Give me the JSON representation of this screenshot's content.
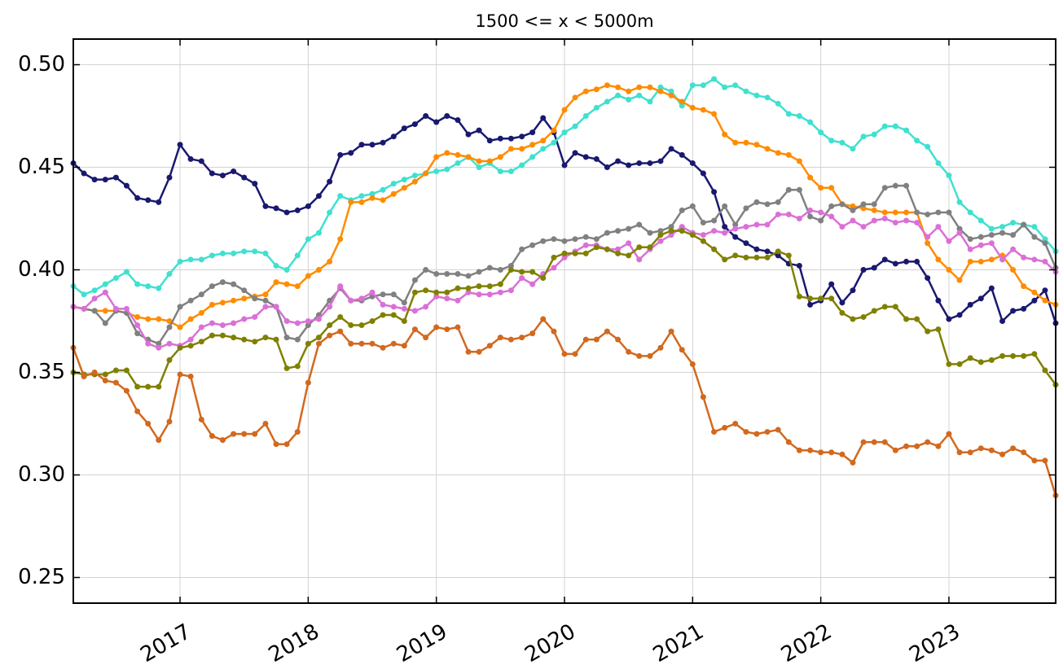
{
  "chart_data": {
    "type": "line",
    "title": "1500 <= x < 5000m",
    "x": [
      2016.167,
      2016.25,
      2016.333,
      2016.417,
      2016.5,
      2016.583,
      2016.667,
      2016.75,
      2016.833,
      2016.917,
      2017.0,
      2017.083,
      2017.167,
      2017.25,
      2017.333,
      2017.417,
      2017.5,
      2017.583,
      2017.667,
      2017.75,
      2017.833,
      2017.917,
      2018.0,
      2018.083,
      2018.167,
      2018.25,
      2018.333,
      2018.417,
      2018.5,
      2018.583,
      2018.667,
      2018.75,
      2018.833,
      2018.917,
      2019.0,
      2019.083,
      2019.167,
      2019.25,
      2019.333,
      2019.417,
      2019.5,
      2019.583,
      2019.667,
      2019.75,
      2019.833,
      2019.917,
      2020.0,
      2020.083,
      2020.167,
      2020.25,
      2020.333,
      2020.417,
      2020.5,
      2020.583,
      2020.667,
      2020.75,
      2020.833,
      2020.917,
      2021.0,
      2021.083,
      2021.167,
      2021.25,
      2021.333,
      2021.417,
      2021.5,
      2021.583,
      2021.667,
      2021.75,
      2021.833,
      2021.917,
      2022.0,
      2022.083,
      2022.167,
      2022.25,
      2022.333,
      2022.417,
      2022.5,
      2022.583,
      2022.667,
      2022.75,
      2022.833,
      2022.917,
      2023.0,
      2023.083,
      2023.167,
      2023.25,
      2023.333,
      2023.417,
      2023.5,
      2023.583,
      2023.667,
      2023.75,
      2023.833
    ],
    "series": [
      {
        "color": "#191970",
        "values": [
          0.452,
          0.447,
          0.444,
          0.444,
          0.445,
          0.441,
          0.435,
          0.434,
          0.433,
          0.445,
          0.461,
          0.454,
          0.453,
          0.447,
          0.446,
          0.448,
          0.445,
          0.442,
          0.431,
          0.43,
          0.428,
          0.429,
          0.431,
          0.436,
          0.443,
          0.456,
          0.457,
          0.461,
          0.461,
          0.462,
          0.465,
          0.469,
          0.471,
          0.475,
          0.472,
          0.475,
          0.473,
          0.466,
          0.468,
          0.463,
          0.464,
          0.464,
          0.465,
          0.467,
          0.474,
          0.467,
          0.451,
          0.457,
          0.455,
          0.454,
          0.45,
          0.453,
          0.451,
          0.452,
          0.452,
          0.453,
          0.459,
          0.456,
          0.452,
          0.447,
          0.438,
          0.421,
          0.416,
          0.413,
          0.41,
          0.409,
          0.407,
          0.403,
          0.402,
          0.383,
          0.385,
          0.393,
          0.384,
          0.39,
          0.4,
          0.401,
          0.405,
          0.403,
          0.404,
          0.404,
          0.396,
          0.385,
          0.376,
          0.378,
          0.383,
          0.386,
          0.391,
          0.375,
          0.38,
          0.381,
          0.385,
          0.39,
          0.374
        ]
      },
      {
        "color": "#40e0d0",
        "values": [
          0.392,
          0.388,
          0.39,
          0.393,
          0.396,
          0.399,
          0.393,
          0.392,
          0.391,
          0.398,
          0.404,
          0.405,
          0.405,
          0.407,
          0.408,
          0.408,
          0.409,
          0.409,
          0.408,
          0.402,
          0.4,
          0.407,
          0.415,
          0.418,
          0.428,
          0.436,
          0.434,
          0.436,
          0.437,
          0.439,
          0.442,
          0.444,
          0.446,
          0.447,
          0.448,
          0.449,
          0.452,
          0.455,
          0.45,
          0.452,
          0.448,
          0.448,
          0.451,
          0.455,
          0.459,
          0.462,
          0.467,
          0.47,
          0.475,
          0.479,
          0.482,
          0.485,
          0.483,
          0.485,
          0.482,
          0.489,
          0.487,
          0.48,
          0.49,
          0.49,
          0.493,
          0.489,
          0.49,
          0.487,
          0.485,
          0.484,
          0.481,
          0.476,
          0.475,
          0.472,
          0.467,
          0.463,
          0.462,
          0.459,
          0.465,
          0.466,
          0.47,
          0.47,
          0.468,
          0.463,
          0.46,
          0.452,
          0.446,
          0.433,
          0.428,
          0.424,
          0.42,
          0.421,
          0.423,
          0.422,
          0.421,
          0.415,
          0.409
        ]
      },
      {
        "color": "#ff8c00",
        "values": [
          0.382,
          0.381,
          0.38,
          0.38,
          0.38,
          0.379,
          0.377,
          0.376,
          0.376,
          0.375,
          0.372,
          0.376,
          0.379,
          0.383,
          0.384,
          0.385,
          0.386,
          0.387,
          0.388,
          0.394,
          0.393,
          0.392,
          0.397,
          0.4,
          0.404,
          0.415,
          0.433,
          0.433,
          0.435,
          0.434,
          0.437,
          0.44,
          0.443,
          0.447,
          0.455,
          0.457,
          0.456,
          0.455,
          0.453,
          0.453,
          0.455,
          0.459,
          0.459,
          0.461,
          0.463,
          0.468,
          0.478,
          0.484,
          0.487,
          0.488,
          0.49,
          0.489,
          0.487,
          0.489,
          0.489,
          0.487,
          0.485,
          0.482,
          0.479,
          0.478,
          0.476,
          0.466,
          0.462,
          0.462,
          0.461,
          0.459,
          0.457,
          0.456,
          0.453,
          0.445,
          0.44,
          0.44,
          0.432,
          0.431,
          0.43,
          0.429,
          0.428,
          0.428,
          0.428,
          0.428,
          0.413,
          0.405,
          0.4,
          0.395,
          0.404,
          0.404,
          0.405,
          0.407,
          0.4,
          0.392,
          0.389,
          0.385,
          0.383
        ]
      },
      {
        "color": "#808080",
        "values": [
          0.382,
          0.381,
          0.38,
          0.374,
          0.38,
          0.379,
          0.369,
          0.366,
          0.364,
          0.372,
          0.382,
          0.385,
          0.388,
          0.392,
          0.394,
          0.393,
          0.39,
          0.386,
          0.385,
          0.382,
          0.367,
          0.366,
          0.373,
          0.378,
          0.385,
          0.391,
          0.385,
          0.385,
          0.387,
          0.388,
          0.388,
          0.384,
          0.395,
          0.4,
          0.398,
          0.398,
          0.398,
          0.397,
          0.399,
          0.401,
          0.4,
          0.402,
          0.41,
          0.412,
          0.414,
          0.415,
          0.414,
          0.415,
          0.416,
          0.415,
          0.418,
          0.419,
          0.42,
          0.422,
          0.418,
          0.419,
          0.421,
          0.429,
          0.431,
          0.423,
          0.424,
          0.431,
          0.422,
          0.43,
          0.433,
          0.432,
          0.433,
          0.439,
          0.439,
          0.426,
          0.424,
          0.431,
          0.432,
          0.429,
          0.432,
          0.432,
          0.44,
          0.441,
          0.441,
          0.428,
          0.427,
          0.428,
          0.428,
          0.42,
          0.415,
          0.416,
          0.417,
          0.418,
          0.417,
          0.422,
          0.416,
          0.413,
          0.401
        ]
      },
      {
        "color": "#da70d6",
        "values": [
          0.382,
          0.381,
          0.386,
          0.389,
          0.381,
          0.381,
          0.373,
          0.364,
          0.362,
          0.364,
          0.363,
          0.366,
          0.372,
          0.374,
          0.373,
          0.374,
          0.376,
          0.377,
          0.382,
          0.382,
          0.375,
          0.374,
          0.375,
          0.376,
          0.382,
          0.392,
          0.385,
          0.386,
          0.389,
          0.383,
          0.382,
          0.381,
          0.38,
          0.382,
          0.387,
          0.386,
          0.385,
          0.389,
          0.388,
          0.388,
          0.389,
          0.39,
          0.396,
          0.393,
          0.398,
          0.401,
          0.406,
          0.409,
          0.412,
          0.412,
          0.41,
          0.41,
          0.413,
          0.405,
          0.41,
          0.414,
          0.417,
          0.421,
          0.418,
          0.417,
          0.419,
          0.418,
          0.42,
          0.421,
          0.422,
          0.422,
          0.427,
          0.427,
          0.425,
          0.429,
          0.428,
          0.426,
          0.421,
          0.424,
          0.421,
          0.424,
          0.425,
          0.423,
          0.424,
          0.423,
          0.416,
          0.421,
          0.414,
          0.418,
          0.41,
          0.412,
          0.413,
          0.405,
          0.41,
          0.406,
          0.405,
          0.404,
          0.399
        ]
      },
      {
        "color": "#808000",
        "values": [
          0.35,
          0.349,
          0.349,
          0.349,
          0.351,
          0.351,
          0.343,
          0.343,
          0.343,
          0.356,
          0.362,
          0.363,
          0.365,
          0.368,
          0.368,
          0.367,
          0.366,
          0.365,
          0.367,
          0.366,
          0.352,
          0.353,
          0.364,
          0.367,
          0.373,
          0.377,
          0.373,
          0.373,
          0.375,
          0.378,
          0.378,
          0.375,
          0.389,
          0.39,
          0.389,
          0.389,
          0.391,
          0.391,
          0.392,
          0.392,
          0.393,
          0.4,
          0.399,
          0.399,
          0.396,
          0.406,
          0.408,
          0.408,
          0.408,
          0.411,
          0.41,
          0.408,
          0.407,
          0.411,
          0.411,
          0.417,
          0.419,
          0.419,
          0.417,
          0.414,
          0.41,
          0.405,
          0.407,
          0.406,
          0.406,
          0.406,
          0.409,
          0.407,
          0.387,
          0.386,
          0.386,
          0.386,
          0.379,
          0.376,
          0.377,
          0.38,
          0.382,
          0.382,
          0.376,
          0.376,
          0.37,
          0.371,
          0.354,
          0.354,
          0.357,
          0.355,
          0.356,
          0.358,
          0.358,
          0.358,
          0.359,
          0.351,
          0.344
        ]
      },
      {
        "color": "#d2691e",
        "values": [
          0.362,
          0.348,
          0.35,
          0.346,
          0.345,
          0.341,
          0.331,
          0.325,
          0.317,
          0.326,
          0.349,
          0.348,
          0.327,
          0.319,
          0.317,
          0.32,
          0.32,
          0.32,
          0.325,
          0.315,
          0.315,
          0.321,
          0.345,
          0.364,
          0.368,
          0.37,
          0.364,
          0.364,
          0.364,
          0.362,
          0.364,
          0.363,
          0.371,
          0.367,
          0.372,
          0.371,
          0.372,
          0.36,
          0.36,
          0.363,
          0.367,
          0.366,
          0.367,
          0.369,
          0.376,
          0.37,
          0.359,
          0.359,
          0.366,
          0.366,
          0.37,
          0.366,
          0.36,
          0.358,
          0.358,
          0.362,
          0.37,
          0.361,
          0.354,
          0.338,
          0.321,
          0.323,
          0.325,
          0.321,
          0.32,
          0.321,
          0.322,
          0.316,
          0.312,
          0.312,
          0.311,
          0.311,
          0.31,
          0.306,
          0.316,
          0.316,
          0.316,
          0.312,
          0.314,
          0.314,
          0.316,
          0.314,
          0.32,
          0.311,
          0.311,
          0.313,
          0.312,
          0.31,
          0.313,
          0.311,
          0.307,
          0.307,
          0.29
        ]
      }
    ],
    "xlim": [
      2016.167,
      2023.833
    ],
    "xticks": [
      2017,
      2018,
      2019,
      2020,
      2021,
      2022,
      2023
    ],
    "ylim": [
      0.2375,
      0.5125
    ],
    "yticks": [
      0.25,
      {
        "value": 0.3,
        "label": "0.30"
      },
      0.35,
      {
        "value": 0.4,
        "label": "0.40"
      },
      0.45,
      {
        "value": 0.5,
        "label": "0.50"
      }
    ],
    "grid": true
  }
}
